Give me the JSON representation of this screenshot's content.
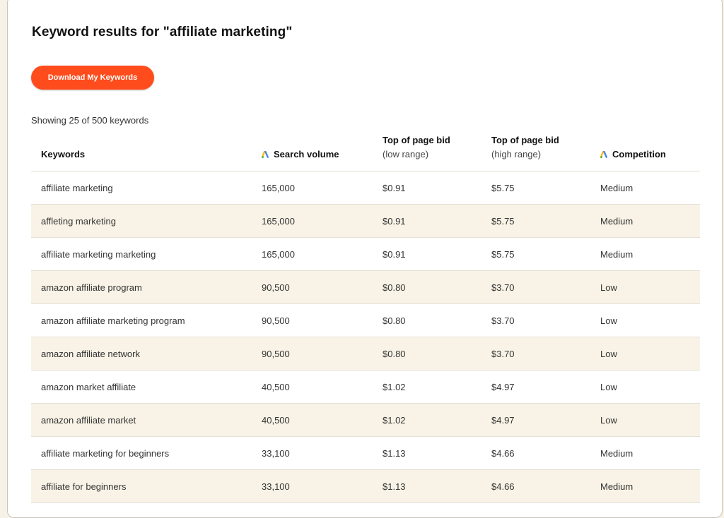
{
  "page": {
    "title": "Keyword results for \"affiliate marketing\"",
    "download_label": "Download My Keywords",
    "showing_text": "Showing 25 of 500 keywords",
    "accent_color": "#ff4c1c",
    "row_alt_color": "#f8f3e6"
  },
  "table": {
    "headers": {
      "keywords": "Keywords",
      "search_volume": "Search volume",
      "low_bid_title": "Top of page bid",
      "low_bid_sub": "(low range)",
      "high_bid_title": "Top of page bid",
      "high_bid_sub": "(high range)",
      "competition": "Competition",
      "header_icon": "google-ads-icon"
    },
    "rows": [
      {
        "keyword": "affiliate marketing",
        "volume": "165,000",
        "low": "$0.91",
        "high": "$5.75",
        "competition": "Medium"
      },
      {
        "keyword": "affleting marketing",
        "volume": "165,000",
        "low": "$0.91",
        "high": "$5.75",
        "competition": "Medium"
      },
      {
        "keyword": "affiliate marketing marketing",
        "volume": "165,000",
        "low": "$0.91",
        "high": "$5.75",
        "competition": "Medium"
      },
      {
        "keyword": "amazon affiliate program",
        "volume": "90,500",
        "low": "$0.80",
        "high": "$3.70",
        "competition": "Low"
      },
      {
        "keyword": "amazon affiliate marketing program",
        "volume": "90,500",
        "low": "$0.80",
        "high": "$3.70",
        "competition": "Low"
      },
      {
        "keyword": "amazon affiliate network",
        "volume": "90,500",
        "low": "$0.80",
        "high": "$3.70",
        "competition": "Low"
      },
      {
        "keyword": "amazon market affiliate",
        "volume": "40,500",
        "low": "$1.02",
        "high": "$4.97",
        "competition": "Low"
      },
      {
        "keyword": "amazon affiliate market",
        "volume": "40,500",
        "low": "$1.02",
        "high": "$4.97",
        "competition": "Low"
      },
      {
        "keyword": "affiliate marketing for beginners",
        "volume": "33,100",
        "low": "$1.13",
        "high": "$4.66",
        "competition": "Medium"
      },
      {
        "keyword": "affiliate for beginners",
        "volume": "33,100",
        "low": "$1.13",
        "high": "$4.66",
        "competition": "Medium"
      }
    ]
  }
}
